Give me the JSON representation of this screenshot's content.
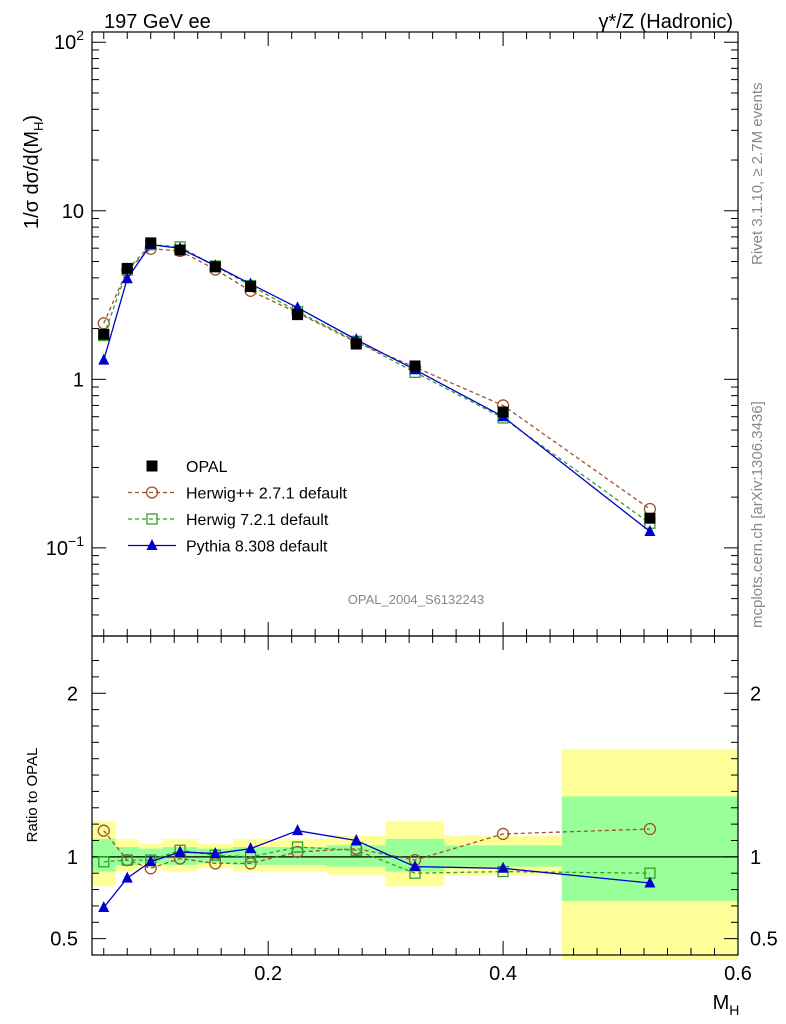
{
  "header": {
    "left": "197 GeV ee",
    "right": "γ*/Z (Hadronic)"
  },
  "side": {
    "rivet": "Rivet 3.1.10, ≥ 2.7M events",
    "mcplots": "mcplots.cern.ch [arXiv:1306.3436]"
  },
  "analysis_id": "OPAL_2004_S6132243",
  "colors": {
    "data": "#000000",
    "herwigpp": "#a0522d",
    "herwig7": "#33a02c",
    "pythia": "#0000cc",
    "band_inner": "#99ff99",
    "band_outer": "#ffff99"
  },
  "chart_data": [
    {
      "type": "line",
      "ylabel": "1/σ dσ/d(M_H)",
      "yscale": "log",
      "xlim": [
        0.05,
        0.6
      ],
      "ylim": [
        0.03,
        115
      ],
      "y_ticks": [
        {
          "value": 0.1,
          "label": "10^-1"
        },
        {
          "value": 1,
          "label": "1"
        },
        {
          "value": 10,
          "label": "10"
        },
        {
          "value": 100,
          "label": "10^2"
        }
      ],
      "legend_position": "lower-left",
      "x": [
        0.06,
        0.08,
        0.1,
        0.125,
        0.155,
        0.185,
        0.225,
        0.275,
        0.325,
        0.4,
        0.525
      ],
      "series": [
        {
          "name": "OPAL",
          "key": "data",
          "marker": "square-filled",
          "line": "none",
          "values": [
            1.85,
            4.55,
            6.45,
            5.85,
            4.65,
            3.55,
            2.42,
            1.62,
            1.2,
            0.64,
            0.15
          ]
        },
        {
          "name": "Herwig++ 2.7.1 default",
          "key": "herwigpp",
          "marker": "circle-open",
          "line": "dashed",
          "values": [
            2.15,
            4.45,
            5.95,
            5.78,
            4.48,
            3.35,
            2.48,
            1.66,
            1.18,
            0.7,
            0.17
          ]
        },
        {
          "name": "Herwig 7.2.1 default",
          "key": "herwig7",
          "marker": "square-open",
          "line": "dashed",
          "values": [
            1.82,
            4.45,
            6.3,
            6.1,
            4.7,
            3.6,
            2.52,
            1.68,
            1.1,
            0.59,
            0.14
          ]
        },
        {
          "name": "Pythia 8.308 default",
          "key": "pythia",
          "marker": "triangle-filled",
          "line": "solid",
          "values": [
            1.3,
            3.95,
            6.3,
            5.98,
            4.72,
            3.68,
            2.66,
            1.72,
            1.14,
            0.6,
            0.125
          ]
        }
      ]
    },
    {
      "type": "line",
      "ylabel": "Ratio to OPAL",
      "xlabel": "M_H",
      "xlim": [
        0.05,
        0.6
      ],
      "ylim": [
        0.4,
        2.35
      ],
      "y_ticks": [
        0.5,
        1,
        2
      ],
      "x_ticks": [
        0.2,
        0.4,
        0.6
      ],
      "x": [
        0.06,
        0.08,
        0.1,
        0.125,
        0.155,
        0.185,
        0.225,
        0.275,
        0.325,
        0.4,
        0.525
      ],
      "series": [
        {
          "name": "Herwig++ 2.7.1 default",
          "key": "herwigpp",
          "values": [
            1.16,
            0.98,
            0.93,
            0.99,
            0.96,
            0.96,
            1.03,
            1.05,
            0.98,
            1.14,
            1.17
          ]
        },
        {
          "name": "Herwig 7.2.1 default",
          "key": "herwig7",
          "values": [
            0.97,
            0.98,
            0.98,
            1.04,
            1.01,
            1.0,
            1.06,
            1.04,
            0.9,
            0.91,
            0.9
          ]
        },
        {
          "name": "Pythia 8.308 default",
          "key": "pythia",
          "values": [
            0.69,
            0.87,
            0.97,
            1.03,
            1.02,
            1.05,
            1.16,
            1.1,
            0.94,
            0.93,
            0.84
          ]
        }
      ],
      "uncertainty_bands": [
        {
          "x0": 0.05,
          "x1": 0.07,
          "inner": [
            0.91,
            1.11
          ],
          "outer": [
            0.82,
            1.22
          ]
        },
        {
          "x0": 0.07,
          "x1": 0.09,
          "inner": [
            0.95,
            1.06
          ],
          "outer": [
            0.91,
            1.11
          ]
        },
        {
          "x0": 0.09,
          "x1": 0.11,
          "inner": [
            0.96,
            1.05
          ],
          "outer": [
            0.93,
            1.08
          ]
        },
        {
          "x0": 0.11,
          "x1": 0.14,
          "inner": [
            0.95,
            1.06
          ],
          "outer": [
            0.91,
            1.11
          ]
        },
        {
          "x0": 0.14,
          "x1": 0.17,
          "inner": [
            0.96,
            1.05
          ],
          "outer": [
            0.93,
            1.08
          ]
        },
        {
          "x0": 0.17,
          "x1": 0.2,
          "inner": [
            0.95,
            1.06
          ],
          "outer": [
            0.91,
            1.11
          ]
        },
        {
          "x0": 0.2,
          "x1": 0.25,
          "inner": [
            0.95,
            1.06
          ],
          "outer": [
            0.91,
            1.11
          ]
        },
        {
          "x0": 0.25,
          "x1": 0.3,
          "inner": [
            0.94,
            1.07
          ],
          "outer": [
            0.89,
            1.13
          ]
        },
        {
          "x0": 0.3,
          "x1": 0.35,
          "inner": [
            0.91,
            1.11
          ],
          "outer": [
            0.82,
            1.22
          ]
        },
        {
          "x0": 0.35,
          "x1": 0.45,
          "inner": [
            0.94,
            1.07
          ],
          "outer": [
            0.89,
            1.13
          ]
        },
        {
          "x0": 0.45,
          "x1": 0.6,
          "inner": [
            0.73,
            1.37
          ],
          "outer": [
            0.37,
            1.66
          ]
        }
      ]
    }
  ]
}
